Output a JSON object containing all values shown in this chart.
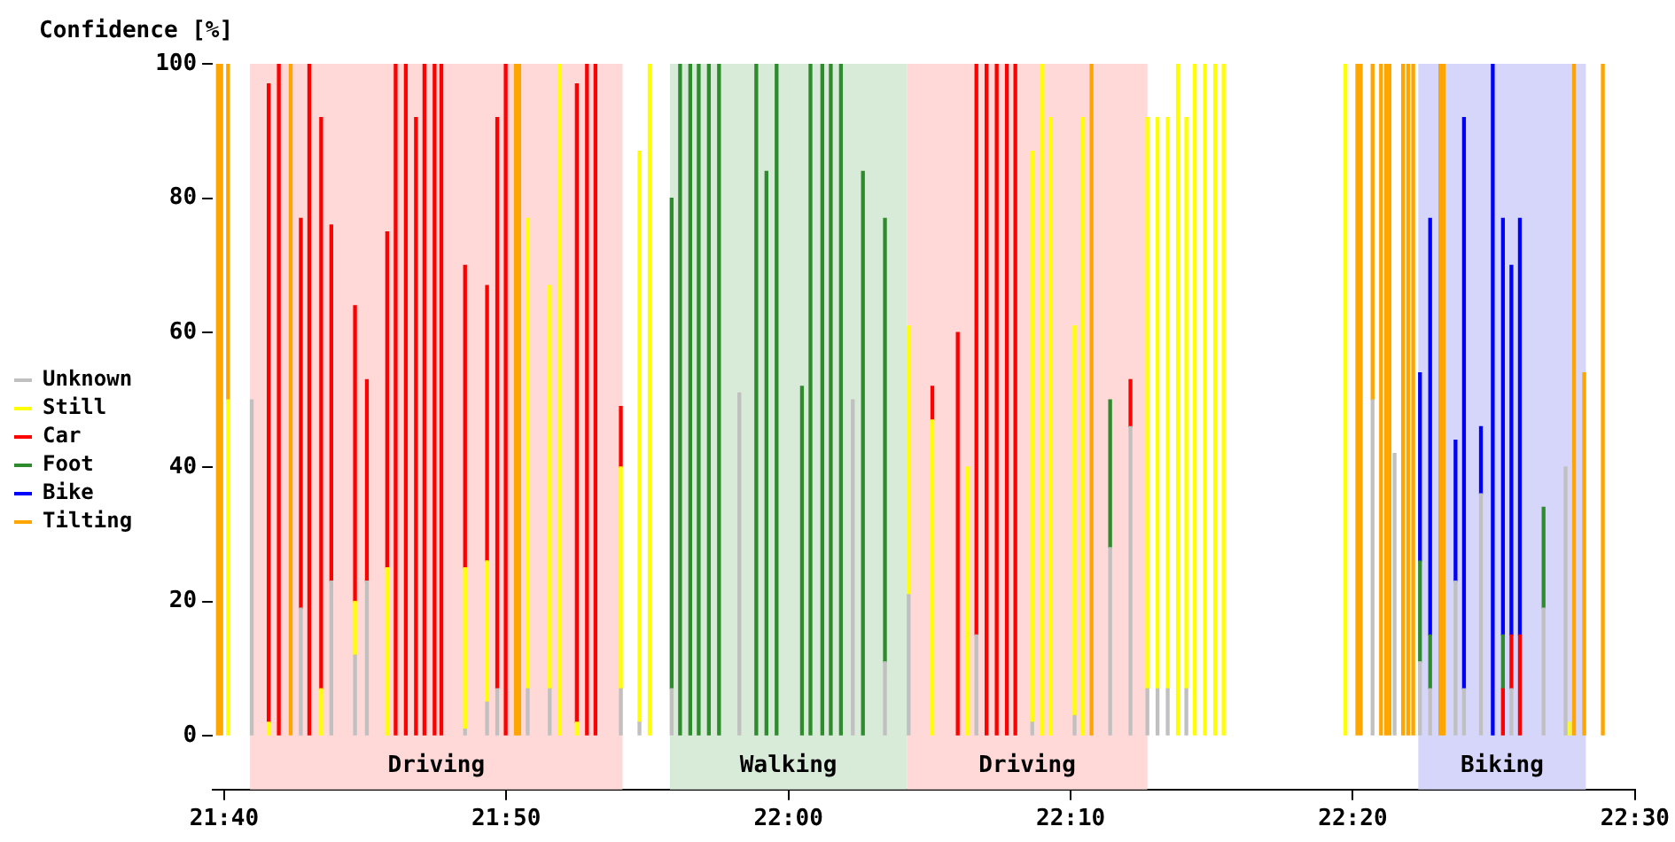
{
  "chart_data": {
    "type": "bar",
    "ylabel": "Confidence [%]",
    "stacked": true,
    "grid": false,
    "legend": "left",
    "xlim": [
      21.66,
      22.5
    ],
    "ylim": [
      -8,
      100
    ],
    "xticks": [
      {
        "value": 21.6667,
        "label": "21:40"
      },
      {
        "value": 21.8333,
        "label": "21:50"
      },
      {
        "value": 22,
        "label": "22:00"
      },
      {
        "value": 22.1667,
        "label": "22:10"
      },
      {
        "value": 22.3333,
        "label": "22:20"
      },
      {
        "value": 22.5,
        "label": "22:30"
      }
    ],
    "yticks": [
      0,
      20,
      40,
      60,
      80,
      100
    ],
    "bands": [
      {
        "axis": "x",
        "from": 21.682,
        "to": 21.902,
        "label": "Driving",
        "color": "#ffd8d8"
      },
      {
        "axis": "x",
        "from": 21.93,
        "to": 22.07,
        "label": "Walking",
        "color": "#d8ead8"
      },
      {
        "axis": "x",
        "from": 22.07,
        "to": 22.212,
        "label": "Driving",
        "color": "#ffd8d8"
      },
      {
        "axis": "x",
        "from": 22.372,
        "to": 22.471,
        "label": "Biking",
        "color": "#d6d6fa"
      }
    ],
    "x": [
      21.663,
      21.665,
      21.669,
      21.683,
      21.693,
      21.699,
      21.706,
      21.712,
      21.717,
      21.724,
      21.73,
      21.744,
      21.751,
      21.763,
      21.768,
      21.774,
      21.78,
      21.785,
      21.791,
      21.795,
      21.809,
      21.822,
      21.828,
      21.833,
      21.839,
      21.841,
      21.846,
      21.859,
      21.865,
      21.875,
      21.881,
      21.886,
      21.901,
      21.912,
      21.918,
      21.931,
      21.936,
      21.942,
      21.947,
      21.953,
      21.959,
      21.971,
      21.981,
      21.987,
      21.993,
      22.008,
      22.013,
      22.02,
      22.025,
      22.031,
      22.038,
      22.044,
      22.057,
      22.071,
      22.085,
      22.1,
      22.106,
      22.111,
      22.117,
      22.123,
      22.129,
      22.134,
      22.144,
      22.15,
      22.155,
      22.169,
      22.174,
      22.179,
      22.19,
      22.202,
      22.212,
      22.218,
      22.224,
      22.23,
      22.235,
      22.24,
      22.246,
      22.252,
      22.257,
      22.329,
      22.336,
      22.338,
      22.345,
      22.35,
      22.353,
      22.355,
      22.358,
      22.363,
      22.366,
      22.369,
      22.373,
      22.379,
      22.385,
      22.387,
      22.394,
      22.399,
      22.409,
      22.416,
      22.422,
      22.427,
      22.432,
      22.446,
      22.459,
      22.461,
      22.464,
      22.47,
      22.481
    ],
    "series": [
      {
        "name": "Unknown",
        "color": "#c0c0c0",
        "values": [
          null,
          null,
          null,
          50,
          null,
          null,
          null,
          19,
          null,
          null,
          23,
          12,
          23,
          null,
          null,
          null,
          null,
          null,
          null,
          null,
          1,
          5,
          7,
          null,
          null,
          null,
          7,
          7,
          null,
          null,
          null,
          null,
          7,
          2,
          null,
          7,
          null,
          null,
          null,
          null,
          null,
          51,
          null,
          null,
          null,
          null,
          null,
          null,
          null,
          null,
          50,
          null,
          11,
          21,
          null,
          null,
          null,
          15,
          null,
          null,
          null,
          null,
          2,
          null,
          null,
          3,
          null,
          null,
          28,
          46,
          7,
          7,
          7,
          null,
          7,
          null,
          null,
          null,
          null,
          null,
          null,
          null,
          50,
          null,
          null,
          null,
          42,
          null,
          null,
          null,
          11,
          7,
          null,
          null,
          23,
          7,
          36,
          null,
          null,
          7,
          null,
          19,
          40,
          null,
          null,
          null,
          null
        ]
      },
      {
        "name": "Still",
        "color": "#ffff00",
        "values": [
          null,
          null,
          50,
          null,
          2,
          null,
          null,
          null,
          null,
          7,
          null,
          8,
          null,
          25,
          null,
          null,
          null,
          null,
          null,
          null,
          24,
          21,
          null,
          null,
          null,
          null,
          70,
          60,
          100,
          2,
          null,
          null,
          33,
          85,
          100,
          null,
          null,
          null,
          null,
          null,
          null,
          null,
          null,
          null,
          null,
          null,
          null,
          null,
          null,
          null,
          null,
          null,
          null,
          40,
          47,
          null,
          40,
          null,
          null,
          null,
          null,
          null,
          85,
          100,
          92,
          58,
          92,
          null,
          null,
          null,
          85,
          85,
          85,
          100,
          85,
          100,
          100,
          100,
          100,
          100,
          null,
          null,
          null,
          null,
          null,
          null,
          null,
          null,
          null,
          null,
          null,
          null,
          null,
          null,
          null,
          null,
          null,
          null,
          null,
          null,
          null,
          null,
          null,
          2,
          null,
          null,
          null
        ]
      },
      {
        "name": "Car",
        "color": "#ff0000",
        "values": [
          null,
          null,
          null,
          null,
          95,
          100,
          null,
          58,
          100,
          85,
          53,
          44,
          30,
          50,
          100,
          100,
          92,
          100,
          100,
          100,
          45,
          41,
          85,
          100,
          null,
          null,
          null,
          null,
          null,
          95,
          100,
          100,
          9,
          null,
          null,
          null,
          null,
          null,
          null,
          null,
          null,
          null,
          null,
          null,
          null,
          null,
          null,
          null,
          null,
          null,
          null,
          null,
          null,
          null,
          5,
          60,
          null,
          85,
          100,
          100,
          100,
          100,
          null,
          null,
          null,
          null,
          null,
          null,
          null,
          7,
          null,
          null,
          null,
          null,
          null,
          null,
          null,
          null,
          null,
          null,
          null,
          null,
          null,
          null,
          null,
          null,
          null,
          null,
          null,
          null,
          null,
          null,
          null,
          null,
          null,
          null,
          null,
          null,
          7,
          8,
          15,
          null,
          null,
          null,
          null,
          null,
          null
        ]
      },
      {
        "name": "Foot",
        "color": "#2e8b2e",
        "values": [
          null,
          null,
          null,
          null,
          null,
          null,
          null,
          null,
          null,
          null,
          null,
          null,
          null,
          null,
          null,
          null,
          null,
          null,
          null,
          null,
          null,
          null,
          null,
          null,
          null,
          null,
          null,
          null,
          null,
          null,
          null,
          null,
          null,
          null,
          null,
          73,
          100,
          100,
          100,
          100,
          100,
          null,
          100,
          84,
          100,
          52,
          100,
          100,
          100,
          100,
          null,
          84,
          66,
          null,
          null,
          null,
          null,
          null,
          null,
          null,
          null,
          null,
          null,
          null,
          null,
          null,
          null,
          null,
          22,
          null,
          null,
          null,
          null,
          null,
          null,
          null,
          null,
          null,
          null,
          null,
          null,
          null,
          null,
          null,
          null,
          null,
          null,
          null,
          null,
          null,
          15,
          8,
          null,
          null,
          null,
          null,
          null,
          null,
          8,
          null,
          null,
          15,
          null,
          null,
          null,
          null,
          null
        ]
      },
      {
        "name": "Bike",
        "color": "#0000ff",
        "values": [
          null,
          null,
          null,
          null,
          null,
          null,
          null,
          null,
          null,
          null,
          null,
          null,
          null,
          null,
          null,
          null,
          null,
          null,
          null,
          null,
          null,
          null,
          null,
          null,
          null,
          null,
          null,
          null,
          null,
          null,
          null,
          null,
          null,
          null,
          null,
          null,
          null,
          null,
          null,
          null,
          null,
          null,
          null,
          null,
          null,
          null,
          null,
          null,
          null,
          null,
          null,
          null,
          null,
          null,
          null,
          null,
          null,
          null,
          null,
          null,
          null,
          null,
          null,
          null,
          null,
          null,
          null,
          null,
          null,
          null,
          null,
          null,
          null,
          null,
          null,
          null,
          null,
          null,
          null,
          null,
          null,
          null,
          null,
          null,
          null,
          null,
          null,
          null,
          null,
          null,
          28,
          62,
          null,
          null,
          21,
          85,
          10,
          100,
          62,
          55,
          62,
          null,
          null,
          null,
          null,
          null,
          null
        ]
      },
      {
        "name": "Tilting",
        "color": "#ffa500",
        "values": [
          100,
          100,
          50,
          null,
          null,
          null,
          100,
          null,
          null,
          null,
          null,
          null,
          null,
          null,
          null,
          null,
          null,
          null,
          null,
          null,
          null,
          null,
          null,
          null,
          100,
          100,
          null,
          null,
          null,
          null,
          null,
          null,
          null,
          null,
          null,
          null,
          null,
          null,
          null,
          null,
          null,
          null,
          null,
          null,
          null,
          null,
          null,
          null,
          null,
          null,
          null,
          null,
          null,
          null,
          null,
          null,
          null,
          null,
          null,
          null,
          null,
          null,
          null,
          null,
          null,
          null,
          null,
          100,
          null,
          null,
          null,
          null,
          null,
          null,
          null,
          null,
          null,
          null,
          null,
          null,
          100,
          100,
          50,
          100,
          100,
          100,
          null,
          100,
          100,
          100,
          null,
          null,
          100,
          100,
          null,
          null,
          null,
          null,
          null,
          null,
          null,
          null,
          null,
          null,
          100,
          54,
          100
        ]
      }
    ]
  }
}
